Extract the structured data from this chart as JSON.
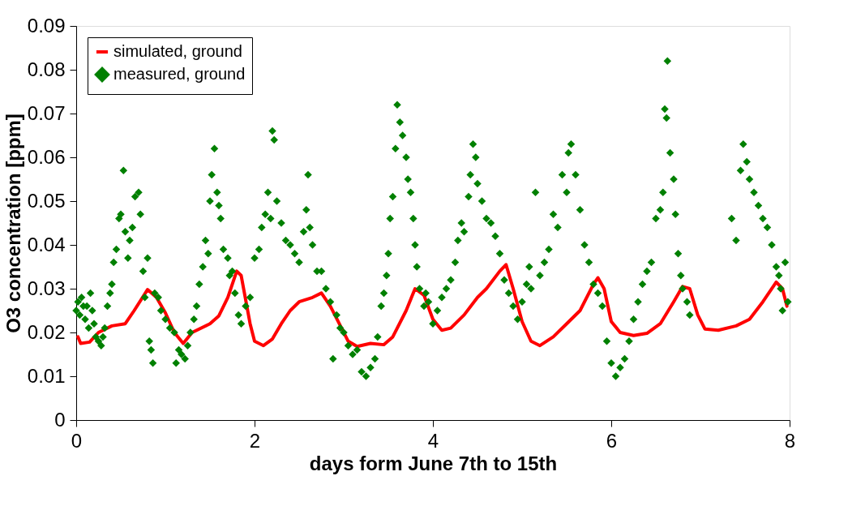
{
  "chart_data": {
    "type": "line",
    "xlabel": "days form June 7th to 15th",
    "ylabel": "O3 concentration [ppm]",
    "xlim": [
      0,
      8
    ],
    "xticks": [
      0,
      2,
      4,
      6,
      8
    ],
    "ylim": [
      0,
      0.09
    ],
    "yticks": [
      0,
      0.01,
      0.02,
      0.03,
      0.04,
      0.05,
      0.06,
      0.07,
      0.08,
      0.09
    ],
    "grid": false,
    "legend": "top left",
    "series": [
      {
        "name": "simulated, ground",
        "color": "#ff0000",
        "marker": "none",
        "line_style": "solid",
        "x": [
          0.02,
          0.05,
          0.15,
          0.25,
          0.4,
          0.55,
          0.65,
          0.8,
          0.9,
          1.0,
          1.1,
          1.2,
          1.3,
          1.5,
          1.6,
          1.7,
          1.8,
          1.85,
          1.95,
          2.0,
          2.1,
          2.2,
          2.3,
          2.4,
          2.5,
          2.65,
          2.75,
          2.85,
          2.95,
          3.05,
          3.15,
          3.3,
          3.45,
          3.55,
          3.7,
          3.8,
          3.9,
          4.0,
          4.1,
          4.2,
          4.35,
          4.5,
          4.6,
          4.75,
          4.82,
          4.9,
          5.0,
          5.1,
          5.2,
          5.35,
          5.5,
          5.65,
          5.8,
          5.85,
          5.92,
          6.0,
          6.1,
          6.25,
          6.4,
          6.55,
          6.7,
          6.8,
          6.88,
          6.97,
          7.05,
          7.2,
          7.4,
          7.55,
          7.7,
          7.85,
          7.92,
          7.97
        ],
        "values": [
          0.019,
          0.0175,
          0.0178,
          0.02,
          0.0215,
          0.022,
          0.025,
          0.0298,
          0.028,
          0.0245,
          0.02,
          0.0175,
          0.02,
          0.022,
          0.0238,
          0.028,
          0.034,
          0.033,
          0.022,
          0.018,
          0.017,
          0.0185,
          0.022,
          0.025,
          0.027,
          0.028,
          0.029,
          0.026,
          0.022,
          0.018,
          0.0168,
          0.0175,
          0.0172,
          0.019,
          0.025,
          0.03,
          0.0285,
          0.023,
          0.0205,
          0.021,
          0.024,
          0.028,
          0.03,
          0.034,
          0.0355,
          0.03,
          0.0225,
          0.018,
          0.017,
          0.019,
          0.022,
          0.025,
          0.031,
          0.0325,
          0.03,
          0.0225,
          0.02,
          0.0193,
          0.0198,
          0.022,
          0.027,
          0.0305,
          0.03,
          0.024,
          0.0208,
          0.0205,
          0.0215,
          0.023,
          0.027,
          0.0315,
          0.03,
          0.026
        ]
      },
      {
        "name": "measured, ground",
        "type": "scatter",
        "color": "#008000",
        "marker": "diamond",
        "x": [
          0.0,
          0.02,
          0.04,
          0.06,
          0.08,
          0.1,
          0.12,
          0.14,
          0.16,
          0.18,
          0.2,
          0.22,
          0.25,
          0.28,
          0.3,
          0.32,
          0.35,
          0.38,
          0.4,
          0.42,
          0.45,
          0.48,
          0.5,
          0.53,
          0.55,
          0.58,
          0.6,
          0.63,
          0.66,
          0.7,
          0.72,
          0.75,
          0.77,
          0.8,
          0.82,
          0.84,
          0.86,
          0.88,
          0.92,
          0.95,
          1.0,
          1.05,
          1.1,
          1.12,
          1.15,
          1.18,
          1.22,
          1.25,
          1.28,
          1.32,
          1.35,
          1.38,
          1.42,
          1.45,
          1.48,
          1.5,
          1.52,
          1.55,
          1.58,
          1.6,
          1.62,
          1.65,
          1.7,
          1.72,
          1.75,
          1.78,
          1.82,
          1.85,
          1.9,
          1.95,
          2.0,
          2.05,
          2.08,
          2.12,
          2.15,
          2.18,
          2.2,
          2.22,
          2.25,
          2.3,
          2.35,
          2.4,
          2.45,
          2.5,
          2.55,
          2.58,
          2.6,
          2.62,
          2.65,
          2.7,
          2.75,
          2.8,
          2.85,
          2.88,
          2.92,
          2.96,
          3.0,
          3.05,
          3.1,
          3.15,
          3.2,
          3.25,
          3.3,
          3.35,
          3.38,
          3.42,
          3.45,
          3.48,
          3.5,
          3.52,
          3.55,
          3.58,
          3.6,
          3.63,
          3.66,
          3.7,
          3.72,
          3.75,
          3.78,
          3.8,
          3.82,
          3.85,
          3.9,
          3.92,
          3.95,
          4.0,
          4.05,
          4.1,
          4.15,
          4.2,
          4.25,
          4.28,
          4.32,
          4.35,
          4.4,
          4.42,
          4.45,
          4.48,
          4.5,
          4.55,
          4.6,
          4.65,
          4.7,
          4.75,
          4.8,
          4.85,
          4.9,
          4.95,
          5.0,
          5.05,
          5.08,
          5.1,
          5.15,
          5.2,
          5.25,
          5.3,
          5.35,
          5.4,
          5.45,
          5.5,
          5.52,
          5.55,
          5.6,
          5.65,
          5.7,
          5.75,
          5.8,
          5.85,
          5.9,
          5.95,
          6.0,
          6.05,
          6.1,
          6.15,
          6.2,
          6.25,
          6.3,
          6.35,
          6.4,
          6.45,
          6.5,
          6.55,
          6.58,
          6.6,
          6.62,
          6.63,
          6.66,
          6.7,
          6.72,
          6.75,
          6.78,
          6.8,
          6.85,
          6.88,
          7.35,
          7.4,
          7.45,
          7.48,
          7.52,
          7.55,
          7.6,
          7.65,
          7.7,
          7.75,
          7.8,
          7.85,
          7.88,
          7.9,
          7.92,
          7.95,
          7.98
        ],
        "values": [
          0.025,
          0.027,
          0.024,
          0.028,
          0.026,
          0.023,
          0.026,
          0.021,
          0.029,
          0.025,
          0.022,
          0.019,
          0.018,
          0.017,
          0.019,
          0.021,
          0.026,
          0.029,
          0.031,
          0.036,
          0.039,
          0.046,
          0.047,
          0.057,
          0.043,
          0.037,
          0.041,
          0.044,
          0.051,
          0.052,
          0.047,
          0.034,
          0.028,
          0.037,
          0.018,
          0.016,
          0.013,
          0.029,
          0.028,
          0.025,
          0.023,
          0.021,
          0.02,
          0.013,
          0.016,
          0.015,
          0.014,
          0.017,
          0.02,
          0.023,
          0.026,
          0.031,
          0.035,
          0.041,
          0.038,
          0.05,
          0.056,
          0.062,
          0.052,
          0.049,
          0.046,
          0.039,
          0.037,
          0.033,
          0.034,
          0.029,
          0.024,
          0.022,
          0.026,
          0.028,
          0.037,
          0.039,
          0.044,
          0.047,
          0.052,
          0.046,
          0.066,
          0.064,
          0.05,
          0.045,
          0.041,
          0.04,
          0.038,
          0.036,
          0.043,
          0.048,
          0.056,
          0.044,
          0.04,
          0.034,
          0.034,
          0.03,
          0.027,
          0.014,
          0.024,
          0.021,
          0.02,
          0.017,
          0.015,
          0.016,
          0.011,
          0.01,
          0.012,
          0.014,
          0.019,
          0.026,
          0.029,
          0.033,
          0.038,
          0.046,
          0.051,
          0.062,
          0.072,
          0.068,
          0.065,
          0.06,
          0.055,
          0.052,
          0.046,
          0.04,
          0.035,
          0.03,
          0.026,
          0.029,
          0.027,
          0.022,
          0.025,
          0.028,
          0.03,
          0.032,
          0.036,
          0.041,
          0.045,
          0.043,
          0.051,
          0.056,
          0.063,
          0.06,
          0.054,
          0.05,
          0.046,
          0.045,
          0.042,
          0.038,
          0.032,
          0.029,
          0.026,
          0.023,
          0.027,
          0.031,
          0.035,
          0.03,
          0.052,
          0.033,
          0.036,
          0.039,
          0.047,
          0.044,
          0.056,
          0.052,
          0.061,
          0.063,
          0.056,
          0.048,
          0.04,
          0.036,
          0.031,
          0.029,
          0.026,
          0.018,
          0.013,
          0.01,
          0.012,
          0.014,
          0.018,
          0.023,
          0.027,
          0.031,
          0.034,
          0.036,
          0.046,
          0.048,
          0.052,
          0.071,
          0.069,
          0.082,
          0.061,
          0.055,
          0.047,
          0.038,
          0.033,
          0.03,
          0.027,
          0.024,
          0.046,
          0.041,
          0.057,
          0.063,
          0.059,
          0.055,
          0.052,
          0.049,
          0.046,
          0.044,
          0.04,
          0.035,
          0.033,
          0.03,
          0.025,
          0.036,
          0.027
        ]
      }
    ]
  }
}
